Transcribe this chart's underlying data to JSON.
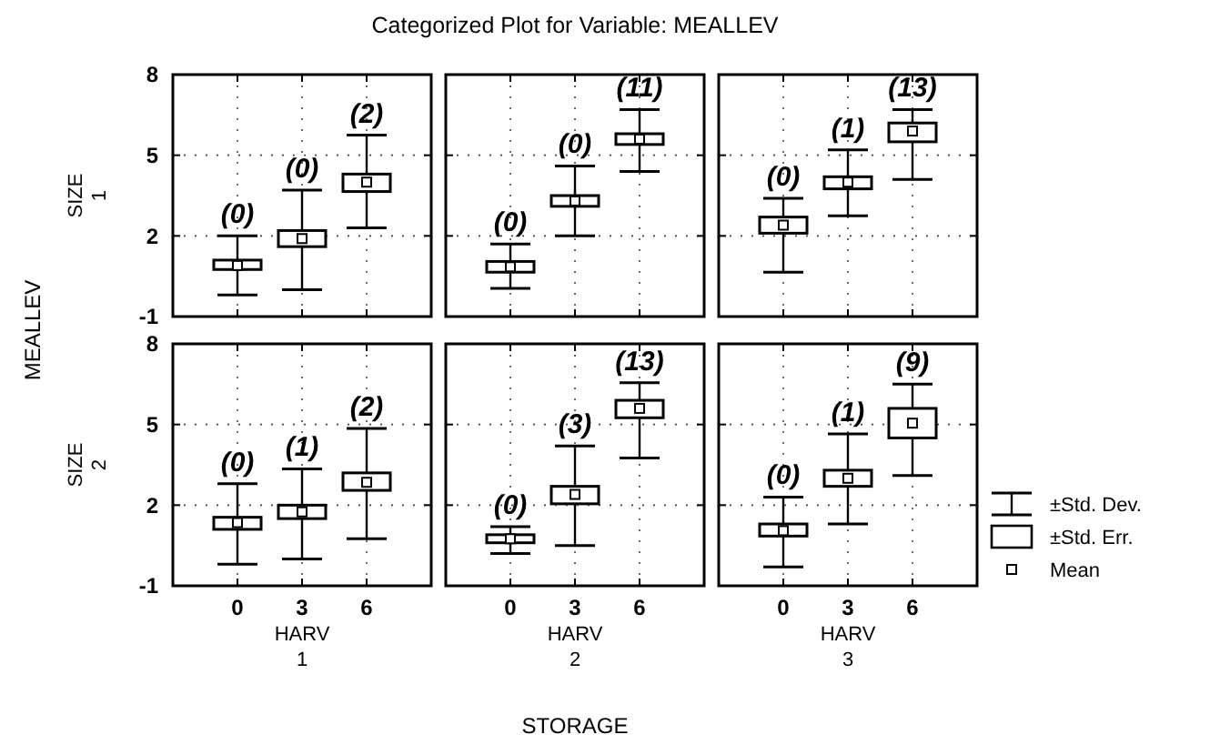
{
  "chart_data": [
    {
      "type": "box",
      "title": "Categorized Plot for Variable: MEALLEV",
      "ylabel": "SIZE\n1",
      "categories": [
        "0",
        "3",
        "6"
      ],
      "ylim": [
        -1,
        8
      ],
      "yticks": [
        -1,
        2,
        5,
        8
      ],
      "grid": true,
      "tick_labels": "y",
      "boxes": [
        {
          "low": -0.2,
          "q1": 0.75,
          "median": 0.9,
          "q3": 1.1,
          "high": 2.0
        },
        {
          "low": 0.0,
          "q1": 1.6,
          "median": 1.9,
          "q3": 2.2,
          "high": 3.7
        },
        {
          "low": 2.3,
          "q1": 3.65,
          "median": 4.0,
          "q3": 4.3,
          "high": 5.75
        }
      ],
      "annotations": [
        "MEALLEV",
        {
          "text": "(0)",
          "x": "0",
          "y": 2.0
        },
        {
          "text": "(0)",
          "x": "3",
          "y": 3.7
        },
        {
          "text": "(2)",
          "x": "6",
          "y": 5.75
        }
      ]
    },
    {
      "type": "box",
      "categories": [
        "0",
        "3",
        "6"
      ],
      "ylim": [
        -1,
        8
      ],
      "yticks": [
        -1,
        2,
        5,
        8
      ],
      "grid": true,
      "tick_labels": false,
      "boxes": [
        {
          "low": 0.05,
          "q1": 0.65,
          "median": 0.85,
          "q3": 1.05,
          "high": 1.7
        },
        {
          "low": 2.0,
          "q1": 3.1,
          "median": 3.3,
          "q3": 3.5,
          "high": 4.6
        },
        {
          "low": 4.4,
          "q1": 5.4,
          "median": 5.6,
          "q3": 5.8,
          "high": 6.7
        }
      ],
      "annotations": [
        {
          "text": "(0)",
          "x": "0",
          "y": 1.7
        },
        {
          "text": "(0)",
          "x": "3",
          "y": 4.6
        },
        {
          "text": "(11)",
          "x": "6",
          "y": 6.7
        }
      ]
    },
    {
      "type": "box",
      "categories": [
        "0",
        "3",
        "6"
      ],
      "ylim": [
        -1,
        8
      ],
      "yticks": [
        -1,
        2,
        5,
        8
      ],
      "grid": true,
      "tick_labels": false,
      "boxes": [
        {
          "low": 0.65,
          "q1": 2.1,
          "median": 2.4,
          "q3": 2.7,
          "high": 3.4
        },
        {
          "low": 2.75,
          "q1": 3.75,
          "median": 4.0,
          "q3": 4.2,
          "high": 5.2
        },
        {
          "low": 4.1,
          "q1": 5.5,
          "median": 5.9,
          "q3": 6.2,
          "high": 6.7
        }
      ],
      "annotations": [
        {
          "text": "(0)",
          "x": "0",
          "y": 3.4
        },
        {
          "text": "(1)",
          "x": "3",
          "y": 5.2
        },
        {
          "text": "(13)",
          "x": "6",
          "y": 6.7
        }
      ]
    },
    {
      "type": "box",
      "xlabel": "HARV\n1",
      "ylabel": "SIZE\n2",
      "categories": [
        "0",
        "3",
        "6"
      ],
      "ylim": [
        -1,
        8
      ],
      "yticks": [
        -1,
        2,
        5,
        8
      ],
      "grid": true,
      "boxes": [
        {
          "low": -0.2,
          "q1": 1.1,
          "median": 1.35,
          "q3": 1.55,
          "high": 2.8
        },
        {
          "low": 0.0,
          "q1": 1.5,
          "median": 1.75,
          "q3": 2.0,
          "high": 3.35
        },
        {
          "low": 0.75,
          "q1": 2.55,
          "median": 2.85,
          "q3": 3.2,
          "high": 4.85
        }
      ],
      "annotations": [
        {
          "text": "(0)",
          "x": "0",
          "y": 2.8
        },
        {
          "text": "(1)",
          "x": "3",
          "y": 3.35
        },
        {
          "text": "(2)",
          "x": "6",
          "y": 4.85
        }
      ]
    },
    {
      "type": "box",
      "xlabel": "HARV\n2",
      "categories": [
        "0",
        "3",
        "6"
      ],
      "ylim": [
        -1,
        8
      ],
      "yticks": [
        -1,
        2,
        5,
        8
      ],
      "grid": true,
      "tick_labels": "x",
      "boxes": [
        {
          "low": 0.2,
          "q1": 0.6,
          "median": 0.75,
          "q3": 0.9,
          "high": 1.2
        },
        {
          "low": 0.5,
          "q1": 2.05,
          "median": 2.4,
          "q3": 2.7,
          "high": 4.2
        },
        {
          "low": 3.75,
          "q1": 5.25,
          "median": 5.6,
          "q3": 5.9,
          "high": 6.55
        }
      ],
      "annotations": [
        "STORAGE",
        {
          "text": "(0)",
          "x": "0",
          "y": 1.2
        },
        {
          "text": "(3)",
          "x": "3",
          "y": 4.2
        },
        {
          "text": "(13)",
          "x": "6",
          "y": 6.55
        }
      ]
    },
    {
      "type": "box",
      "xlabel": "HARV\n3",
      "categories": [
        "0",
        "3",
        "6"
      ],
      "ylim": [
        -1,
        8
      ],
      "yticks": [
        -1,
        2,
        5,
        8
      ],
      "grid": true,
      "tick_labels": "x",
      "boxes": [
        {
          "low": -0.3,
          "q1": 0.85,
          "median": 1.05,
          "q3": 1.3,
          "high": 2.3
        },
        {
          "low": 1.3,
          "q1": 2.7,
          "median": 3.0,
          "q3": 3.3,
          "high": 4.65
        },
        {
          "low": 3.1,
          "q1": 4.5,
          "median": 5.05,
          "q3": 5.6,
          "high": 6.5
        }
      ],
      "annotations": [
        "±Std. Dev.",
        "±Std. Err.",
        "Mean",
        {
          "text": "(0)",
          "x": "0",
          "y": 2.3
        },
        {
          "text": "(1)",
          "x": "3",
          "y": 4.65
        },
        {
          "text": "(9)",
          "x": "6",
          "y": 6.5
        }
      ]
    }
  ]
}
